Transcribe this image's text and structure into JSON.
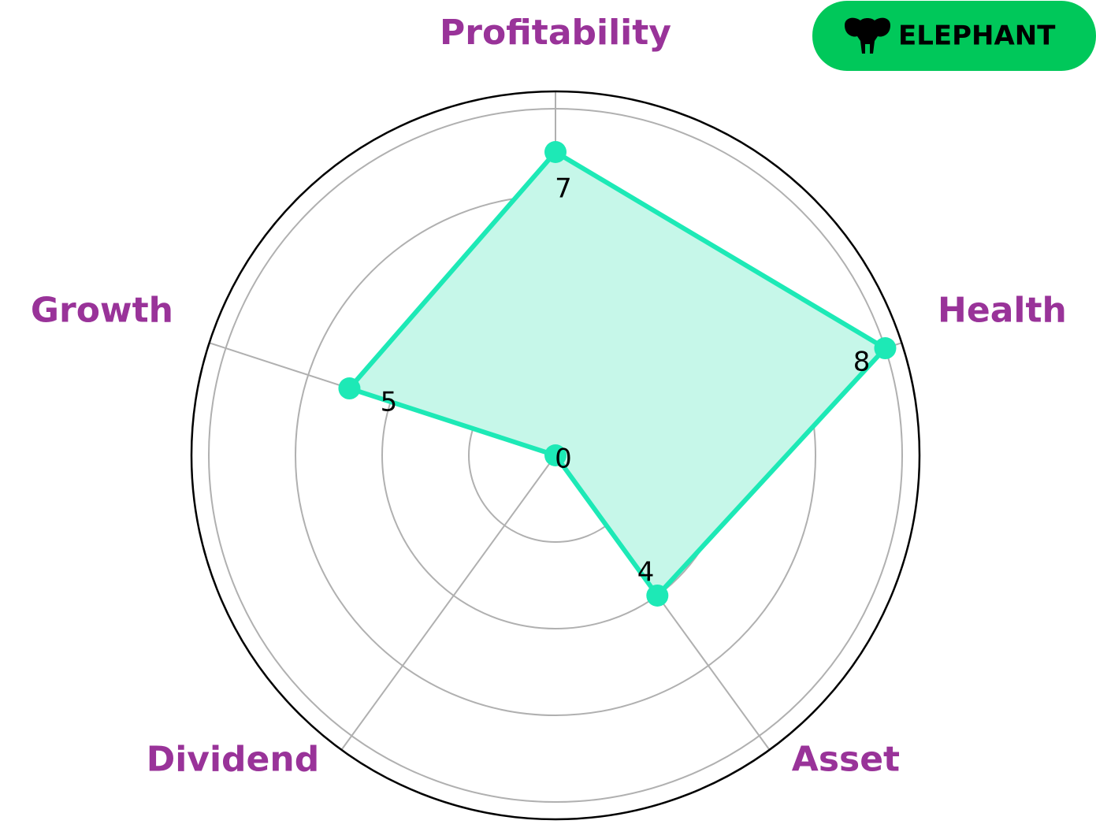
{
  "logo": "ELEPHANT",
  "chart_data": {
    "type": "radar",
    "categories": [
      "Profitability",
      "Health",
      "Asset",
      "Dividend",
      "Growth"
    ],
    "values": [
      7,
      8,
      4,
      0,
      5
    ],
    "color": "#1de9b6",
    "fill": "#c6f7e9",
    "label_color": "#993399",
    "rlim": [
      0,
      8.4
    ],
    "rticks": [
      2,
      4,
      6,
      8
    ],
    "grid": true
  }
}
